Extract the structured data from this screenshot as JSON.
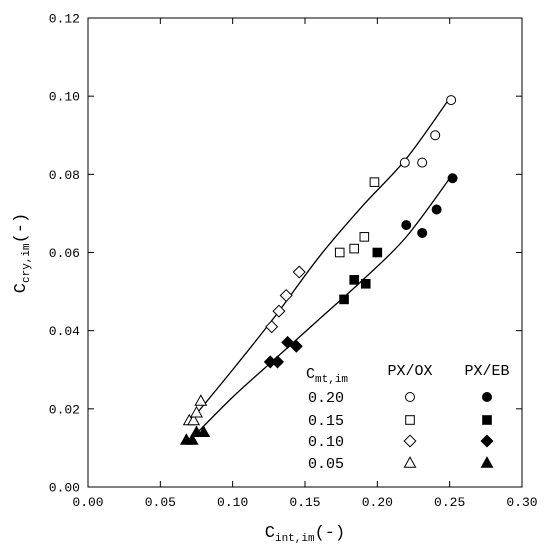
{
  "chart_data": {
    "type": "scatter",
    "xlabel": {
      "main": "C",
      "sub": "int,im",
      "unit": "(-)"
    },
    "ylabel": {
      "main": "C",
      "sub": "cry,im",
      "unit": "(-)"
    },
    "xlim": [
      0.0,
      0.3
    ],
    "ylim": [
      0.0,
      0.12
    ],
    "x_ticks": [
      0.0,
      0.05,
      0.1,
      0.15,
      0.2,
      0.25,
      0.3
    ],
    "x_tick_labels": [
      "0.00",
      "0.05",
      "0.10",
      "0.15",
      "0.20",
      "0.25",
      "0.30"
    ],
    "y_ticks": [
      0.0,
      0.02,
      0.04,
      0.06,
      0.08,
      0.1,
      0.12
    ],
    "y_tick_labels": [
      "0.00",
      "0.02",
      "0.04",
      "0.06",
      "0.08",
      "0.10",
      "0.12"
    ],
    "grid": false,
    "legend": {
      "position": "bottom-right",
      "col_header": {
        "main": "C",
        "sub": "mt,im"
      },
      "system_headers": [
        "PX/OX",
        "PX/EB"
      ],
      "rows": [
        {
          "label": "0.20",
          "marker": "circle"
        },
        {
          "label": "0.15",
          "marker": "square"
        },
        {
          "label": "0.10",
          "marker": "diamond"
        },
        {
          "label": "0.05",
          "marker": "triangle"
        }
      ]
    },
    "series": [
      {
        "group": "PX/OX",
        "filled": false,
        "marker": "circle",
        "points": [
          [
            0.219,
            0.083
          ],
          [
            0.231,
            0.083
          ],
          [
            0.24,
            0.09
          ],
          [
            0.251,
            0.099
          ]
        ]
      },
      {
        "group": "PX/OX",
        "filled": false,
        "marker": "square",
        "points": [
          [
            0.174,
            0.06
          ],
          [
            0.184,
            0.061
          ],
          [
            0.191,
            0.064
          ],
          [
            0.198,
            0.078
          ]
        ]
      },
      {
        "group": "PX/OX",
        "filled": false,
        "marker": "diamond",
        "points": [
          [
            0.127,
            0.041
          ],
          [
            0.132,
            0.045
          ],
          [
            0.137,
            0.049
          ],
          [
            0.146,
            0.055
          ]
        ]
      },
      {
        "group": "PX/OX",
        "filled": false,
        "marker": "triangle",
        "points": [
          [
            0.07,
            0.017
          ],
          [
            0.073,
            0.017
          ],
          [
            0.075,
            0.019
          ],
          [
            0.078,
            0.022
          ]
        ]
      },
      {
        "group": "PX/EB",
        "filled": true,
        "marker": "circle",
        "points": [
          [
            0.22,
            0.067
          ],
          [
            0.231,
            0.065
          ],
          [
            0.241,
            0.071
          ],
          [
            0.252,
            0.079
          ]
        ]
      },
      {
        "group": "PX/EB",
        "filled": true,
        "marker": "square",
        "points": [
          [
            0.177,
            0.048
          ],
          [
            0.184,
            0.053
          ],
          [
            0.192,
            0.052
          ],
          [
            0.2,
            0.06
          ]
        ]
      },
      {
        "group": "PX/EB",
        "filled": true,
        "marker": "diamond",
        "points": [
          [
            0.126,
            0.032
          ],
          [
            0.131,
            0.032
          ],
          [
            0.138,
            0.037
          ],
          [
            0.144,
            0.036
          ]
        ]
      },
      {
        "group": "PX/EB",
        "filled": true,
        "marker": "triangle",
        "points": [
          [
            0.068,
            0.012
          ],
          [
            0.072,
            0.012
          ],
          [
            0.075,
            0.014
          ],
          [
            0.08,
            0.014
          ]
        ]
      }
    ],
    "fit_lines": [
      {
        "group": "PX/OX",
        "points": [
          [
            0.07,
            0.0165
          ],
          [
            0.1,
            0.03
          ],
          [
            0.13,
            0.044
          ],
          [
            0.16,
            0.059
          ],
          [
            0.19,
            0.072
          ],
          [
            0.22,
            0.084
          ],
          [
            0.25,
            0.0995
          ]
        ]
      },
      {
        "group": "PX/EB",
        "points": [
          [
            0.07,
            0.0118
          ],
          [
            0.1,
            0.023
          ],
          [
            0.13,
            0.033
          ],
          [
            0.16,
            0.043
          ],
          [
            0.19,
            0.053
          ],
          [
            0.22,
            0.064
          ],
          [
            0.252,
            0.08
          ]
        ]
      }
    ]
  }
}
